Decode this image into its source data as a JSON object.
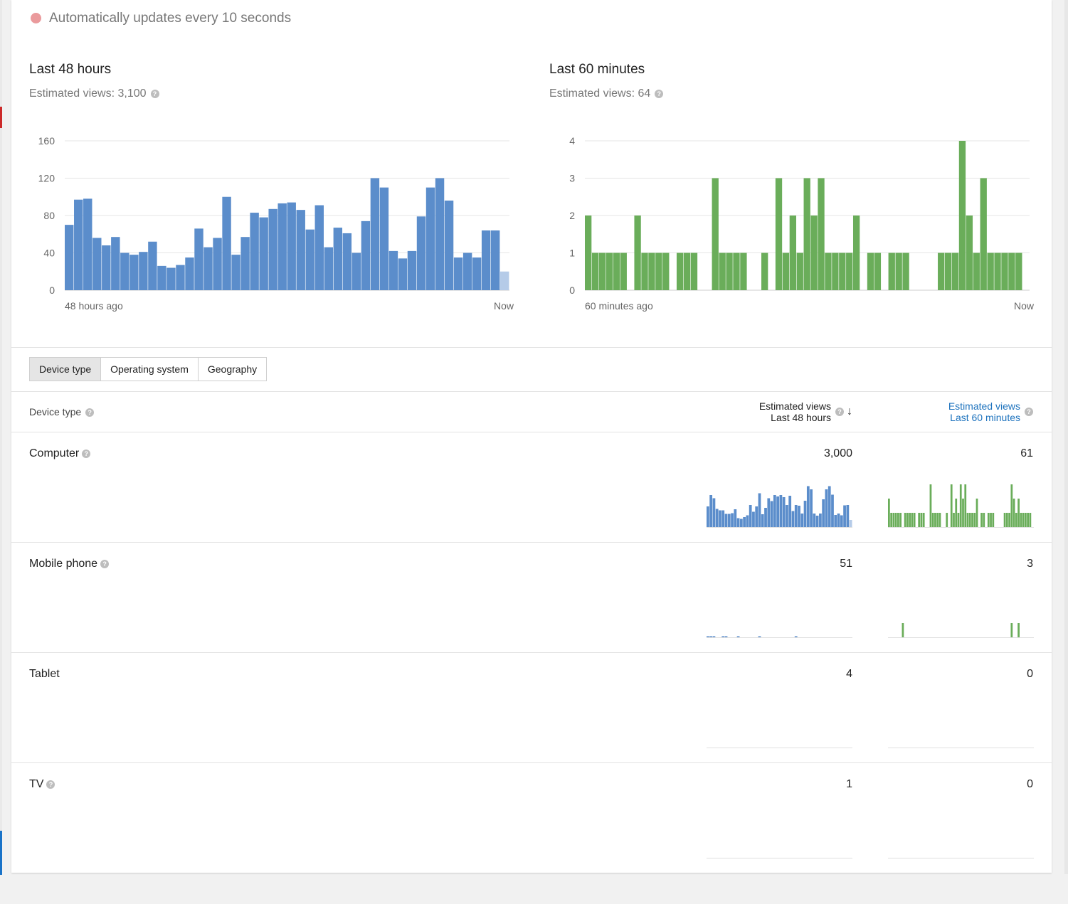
{
  "status": {
    "text": "Automatically updates every 10 seconds",
    "dot_color": "#ea9a9c"
  },
  "panels": {
    "h48": {
      "title": "Last 48 hours",
      "sub": "Estimated views: 3,100",
      "help_icon": "question-circle",
      "color": "#5b8dcb",
      "partial_color": "#b5cbe8",
      "ylim": [
        0,
        160
      ],
      "yticks": [
        "160",
        "120",
        "80",
        "40",
        "0"
      ],
      "xlabel_start": "48 hours ago",
      "xlabel_end": "Now",
      "values": [
        70,
        97,
        98,
        56,
        48,
        57,
        40,
        38,
        41,
        52,
        26,
        24,
        27,
        35,
        66,
        46,
        56,
        100,
        38,
        57,
        83,
        78,
        87,
        93,
        94,
        86,
        65,
        91,
        46,
        67,
        61,
        40,
        74,
        120,
        110,
        42,
        34,
        42,
        79,
        110,
        120,
        96,
        35,
        40,
        35,
        64,
        64,
        20
      ],
      "last_partial": true
    },
    "m60": {
      "title": "Last 60 minutes",
      "sub": "Estimated views: 64",
      "help_icon": "question-circle",
      "color": "#6aad5a",
      "ylim": [
        0,
        4
      ],
      "yticks": [
        "4",
        "3",
        "2",
        "1",
        "0"
      ],
      "xlabel_start": "60 minutes ago",
      "xlabel_end": "Now",
      "values": [
        2,
        1,
        1,
        1,
        1,
        1,
        0,
        2,
        1,
        1,
        1,
        1,
        0,
        1,
        1,
        1,
        0,
        0,
        3,
        1,
        1,
        1,
        1,
        0,
        0,
        1,
        0,
        3,
        1,
        2,
        1,
        3,
        2,
        3,
        1,
        1,
        1,
        1,
        2,
        0,
        1,
        1,
        0,
        1,
        1,
        1,
        0,
        0,
        0,
        0,
        1,
        1,
        1,
        4,
        2,
        1,
        3,
        1,
        1,
        1,
        1,
        1,
        0
      ]
    }
  },
  "tabs": [
    "Device type",
    "Operating system",
    "Geography"
  ],
  "table": {
    "col_label": "Device type",
    "col48": {
      "line1": "Estimated views",
      "line2": "Last 48 hours"
    },
    "col60": {
      "line1": "Estimated views",
      "line2": "Last 60 minutes"
    },
    "rows": [
      {
        "label": "Computer",
        "has_help": true,
        "v48": "3,000",
        "v60": "61",
        "s48": [
          58,
          90,
          81,
          51,
          47,
          47,
          37,
          37,
          39,
          50,
          25,
          23,
          28,
          33,
          62,
          43,
          58,
          95,
          36,
          54,
          81,
          73,
          90,
          86,
          90,
          84,
          62,
          88,
          45,
          62,
          60,
          38,
          74,
          115,
          106,
          38,
          32,
          38,
          78,
          106,
          115,
          91,
          34,
          38,
          33,
          61,
          62,
          20
        ],
        "s60": [
          2,
          1,
          1,
          1,
          1,
          1,
          0,
          1,
          1,
          1,
          1,
          1,
          0,
          1,
          1,
          1,
          0,
          0,
          3,
          1,
          1,
          1,
          1,
          0,
          0,
          1,
          0,
          3,
          1,
          2,
          1,
          3,
          2,
          3,
          1,
          1,
          1,
          1,
          2,
          0,
          1,
          1,
          0,
          1,
          1,
          1,
          0,
          0,
          0,
          0,
          1,
          1,
          1,
          3,
          2,
          1,
          2,
          1,
          1,
          1,
          1,
          1,
          0
        ]
      },
      {
        "label": "Mobile phone",
        "has_help": true,
        "v48": "51",
        "v60": "3",
        "s48": [
          2,
          3,
          1,
          0,
          0,
          1,
          2,
          0,
          0,
          0,
          1,
          0,
          0,
          0,
          0,
          0,
          0,
          2,
          0,
          0,
          0,
          0,
          0,
          0,
          0,
          0,
          0,
          0,
          0,
          1,
          0,
          0,
          0,
          0,
          0,
          0,
          0,
          0,
          0,
          0,
          0,
          0,
          0,
          0,
          0,
          0,
          0,
          0
        ],
        "s60": [
          0,
          0,
          0,
          0,
          0,
          0,
          1,
          0,
          0,
          0,
          0,
          0,
          0,
          0,
          0,
          0,
          0,
          0,
          0,
          0,
          0,
          0,
          0,
          0,
          0,
          0,
          0,
          0,
          0,
          0,
          0,
          0,
          0,
          0,
          0,
          0,
          0,
          0,
          0,
          0,
          0,
          0,
          0,
          0,
          0,
          0,
          0,
          0,
          0,
          0,
          0,
          0,
          0,
          1,
          0,
          0,
          1,
          0,
          0,
          0,
          0,
          0,
          0
        ]
      },
      {
        "label": "Tablet",
        "has_help": false,
        "v48": "4",
        "v60": "0",
        "s48": [
          0,
          0,
          0,
          0,
          0,
          0,
          0,
          0,
          0,
          0,
          0,
          0,
          0,
          0,
          0,
          0,
          0,
          0,
          0,
          0,
          0,
          0,
          0,
          0,
          0,
          0,
          0,
          0,
          0,
          0,
          0,
          0,
          0,
          0,
          0,
          0,
          0,
          0,
          0,
          0,
          0,
          0,
          0,
          0,
          0,
          0,
          0,
          0
        ],
        "s60": []
      },
      {
        "label": "TV",
        "has_help": true,
        "v48": "1",
        "v60": "0",
        "s48": [],
        "s60": []
      }
    ]
  }
}
